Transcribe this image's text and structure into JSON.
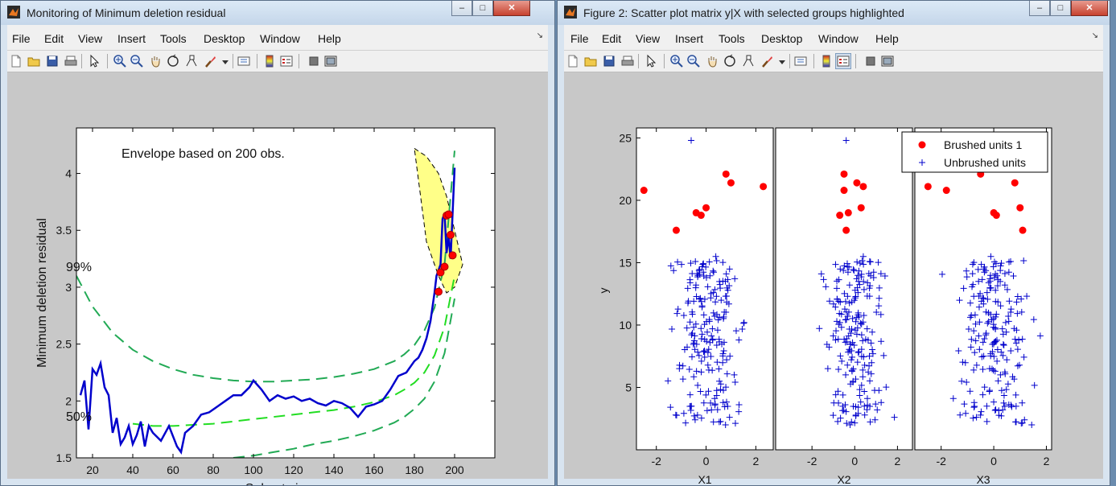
{
  "window1": {
    "title": "Monitoring of Minimum deletion residual",
    "menu": [
      "File",
      "Edit",
      "View",
      "Insert",
      "Tools",
      "Desktop",
      "Window",
      "Help"
    ],
    "controls": {
      "minimize": "–",
      "maximize": "□",
      "close": "✕"
    },
    "toolbar_icons": [
      "new-figure-icon",
      "open-file-icon",
      "save-icon",
      "print-icon",
      "edit-plot-arrow-icon",
      "zoom-in-icon",
      "zoom-out-icon",
      "pan-hand-icon",
      "rotate-3d-icon",
      "data-cursor-icon",
      "brush-icon",
      "brush-dropdown-icon",
      "link-plot-icon",
      "insert-colorbar-icon",
      "insert-legend-icon",
      "hide-plot-tools-icon",
      "show-plot-tools-icon"
    ],
    "plot": {
      "annotation": "Envelope based on 200 obs.",
      "band_labels": [
        "99%",
        "50%"
      ]
    }
  },
  "window2": {
    "title": "Figure 2: Scatter plot matrix y|X with selected groups highlighted",
    "menu": [
      "File",
      "Edit",
      "View",
      "Insert",
      "Tools",
      "Desktop",
      "Window",
      "Help"
    ],
    "controls": {
      "minimize": "–",
      "maximize": "□",
      "close": "✕"
    },
    "toolbar_icons": [
      "new-figure-icon",
      "open-file-icon",
      "save-icon",
      "print-icon",
      "edit-plot-arrow-icon",
      "zoom-in-icon",
      "zoom-out-icon",
      "pan-hand-icon",
      "rotate-3d-icon",
      "data-cursor-icon",
      "brush-icon",
      "brush-dropdown-icon",
      "link-plot-icon",
      "insert-colorbar-icon",
      "insert-legend-icon",
      "hide-plot-tools-icon",
      "show-plot-tools-icon"
    ],
    "legend": [
      "Brushed units 1",
      "Unbrushed units"
    ]
  },
  "colors": {
    "curve": "#0000cc",
    "envelope_outer": "#22aa55",
    "envelope_mid": "#22dd22",
    "band_fill": "#ffff88",
    "brushed": "#ff0000",
    "unbrushed": "#0000cc"
  },
  "chart_data": [
    {
      "type": "line",
      "title": "",
      "xlabel": "Subset size m",
      "ylabel": "Minimum deletion residual",
      "xlim": [
        12,
        220
      ],
      "ylim": [
        1.5,
        4.4
      ],
      "xticks": [
        20,
        40,
        60,
        80,
        100,
        120,
        140,
        160,
        180,
        200
      ],
      "yticks": [
        1.5,
        2,
        2.5,
        3,
        3.5,
        4
      ],
      "series": [
        {
          "role": "envelope-99",
          "x": [
            12,
            20,
            30,
            40,
            50,
            60,
            70,
            80,
            90,
            100,
            110,
            120,
            130,
            140,
            150,
            160,
            170,
            175,
            180,
            185,
            190,
            195,
            200
          ],
          "y": [
            3.1,
            2.83,
            2.6,
            2.45,
            2.35,
            2.28,
            2.23,
            2.2,
            2.18,
            2.17,
            2.17,
            2.18,
            2.19,
            2.21,
            2.24,
            2.28,
            2.35,
            2.41,
            2.49,
            2.62,
            2.82,
            3.2,
            4.2
          ]
        },
        {
          "role": "envelope-50",
          "x": [
            40,
            50,
            60,
            70,
            80,
            90,
            100,
            110,
            120,
            130,
            140,
            150,
            160,
            170,
            175,
            180,
            185,
            190,
            195,
            200
          ],
          "y": [
            1.8,
            1.78,
            1.78,
            1.79,
            1.8,
            1.82,
            1.84,
            1.86,
            1.88,
            1.9,
            1.92,
            1.95,
            1.99,
            2.05,
            2.1,
            2.16,
            2.25,
            2.4,
            2.65,
            3.1
          ]
        },
        {
          "role": "envelope-1",
          "x": [
            90,
            100,
            110,
            120,
            130,
            140,
            150,
            160,
            170,
            175,
            180,
            185,
            190,
            195,
            200
          ],
          "y": [
            1.5,
            1.52,
            1.55,
            1.58,
            1.62,
            1.65,
            1.69,
            1.74,
            1.81,
            1.86,
            1.93,
            2.02,
            2.17,
            2.42,
            2.9
          ]
        },
        {
          "role": "monitoring",
          "x": [
            14,
            16,
            18,
            20,
            22,
            24,
            26,
            28,
            30,
            32,
            34,
            36,
            38,
            40,
            42,
            44,
            46,
            48,
            50,
            54,
            58,
            62,
            64,
            66,
            70,
            74,
            78,
            82,
            86,
            90,
            94,
            98,
            100,
            104,
            108,
            112,
            116,
            120,
            124,
            128,
            132,
            136,
            140,
            144,
            148,
            152,
            156,
            160,
            164,
            168,
            172,
            176,
            180,
            182,
            184,
            186,
            188,
            190,
            191,
            192,
            193,
            194,
            195,
            196,
            197,
            198,
            199,
            200
          ],
          "y": [
            2.05,
            2.18,
            1.75,
            2.28,
            2.23,
            2.33,
            2.12,
            2.05,
            1.72,
            1.85,
            1.62,
            1.68,
            1.78,
            1.62,
            1.7,
            1.82,
            1.6,
            1.78,
            1.72,
            1.65,
            1.78,
            1.6,
            1.55,
            1.72,
            1.78,
            1.88,
            1.9,
            1.95,
            2.0,
            2.05,
            2.05,
            2.12,
            2.18,
            2.1,
            2.0,
            2.05,
            2.02,
            2.04,
            2.0,
            2.02,
            1.98,
            1.96,
            2.0,
            1.98,
            1.94,
            1.86,
            1.95,
            1.97,
            2.0,
            2.1,
            2.22,
            2.25,
            2.35,
            2.38,
            2.45,
            2.55,
            2.7,
            2.95,
            3.1,
            3.15,
            3.2,
            3.6,
            3.65,
            3.3,
            3.45,
            3.25,
            3.65,
            4.05
          ]
        },
        {
          "role": "brushed-points",
          "x": [
            192,
            193,
            195,
            196,
            197,
            198,
            199
          ],
          "y": [
            2.96,
            3.13,
            3.18,
            3.63,
            3.64,
            3.46,
            3.28
          ]
        }
      ],
      "band_polygon": {
        "x": [
          180,
          186,
          192,
          196,
          200,
          204,
          200,
          196,
          192,
          186
        ],
        "y": [
          4.22,
          4.15,
          4.0,
          3.8,
          3.5,
          3.2,
          3.0,
          2.95,
          3.1,
          3.4
        ]
      }
    },
    {
      "type": "scatter",
      "ylabel": "y",
      "panels": [
        {
          "xlabel": "X1",
          "xlim": [
            -2.8,
            2.7
          ],
          "xticks": [
            -2,
            0,
            2
          ]
        },
        {
          "xlabel": "X2",
          "xlim": [
            -3.7,
            2.7
          ],
          "xticks": [
            -2,
            0,
            2
          ]
        },
        {
          "xlabel": "X3",
          "xlim": [
            -3,
            2.2
          ],
          "xticks": [
            -2,
            0,
            2
          ]
        }
      ],
      "ylim": [
        0,
        25.8
      ],
      "yticks": [
        5,
        10,
        15,
        20,
        25
      ],
      "series": [
        {
          "name": "Brushed units 1",
          "marker": "filled-circle",
          "y": [
            20.8,
            17.6,
            19.0,
            18.8,
            19.4,
            22.1,
            21.4,
            21.1
          ],
          "x1": [
            -2.5,
            -1.2,
            -0.4,
            -0.2,
            0.0,
            0.8,
            1.0,
            2.3
          ],
          "x2": [
            -0.5,
            -0.4,
            -0.3,
            -0.7,
            0.3,
            -0.5,
            0.1,
            0.4
          ],
          "x3": [
            -1.8,
            1.1,
            0.0,
            0.1,
            1.0,
            -0.5,
            0.8,
            -2.5
          ]
        },
        {
          "name": "Unbrushed units",
          "marker": "plus",
          "count": 200,
          "y_range": [
            2,
            16
          ],
          "outliers": [
            {
              "x1": -0.6,
              "x2": -0.4,
              "x3": -1.2,
              "y": 24.8
            }
          ]
        }
      ]
    }
  ]
}
